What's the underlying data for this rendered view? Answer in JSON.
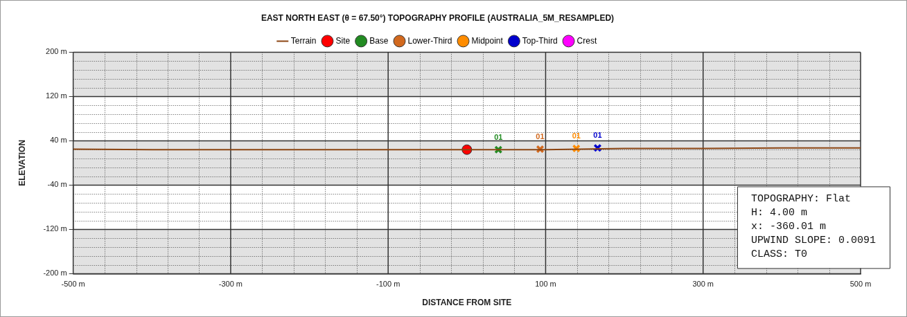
{
  "chart_data": {
    "type": "line",
    "title": "EAST NORTH EAST (θ = 67.50°) TOPOGRAPHY PROFILE (AUSTRALIA_5M_RESAMPLED)",
    "xlabel": "DISTANCE FROM SITE",
    "ylabel": "ELEVATION",
    "xlim": [
      -500,
      500
    ],
    "xticks": [
      {
        "value": -500,
        "label": "-500 m"
      },
      {
        "value": -300,
        "label": "-300 m"
      },
      {
        "value": -100,
        "label": "-100 m"
      },
      {
        "value": 100,
        "label": "100 m"
      },
      {
        "value": 300,
        "label": "300 m"
      },
      {
        "value": 500,
        "label": "500 m"
      }
    ],
    "ylim": [
      -200,
      200
    ],
    "yticks": [
      {
        "value": -200,
        "label": "-200 m"
      },
      {
        "value": -120,
        "label": "-120 m"
      },
      {
        "value": -40,
        "label": "-40 m"
      },
      {
        "value": 40,
        "label": "40 m"
      },
      {
        "value": 120,
        "label": "120 m"
      },
      {
        "value": 200,
        "label": "200 m"
      }
    ],
    "grid": true,
    "legend": "top",
    "line_style": "solid",
    "series": [
      {
        "name": "Terrain",
        "marker": "none",
        "color": "#8b4513",
        "x": [
          -500,
          -400,
          -300,
          -200,
          -100,
          0,
          100,
          200,
          300,
          400,
          500
        ],
        "values": [
          25,
          24,
          24,
          24,
          24,
          24,
          24,
          26,
          26,
          27,
          27
        ]
      },
      {
        "name": "Site",
        "type": "scatter",
        "marker": "circle",
        "color": "#ff0000",
        "x": [
          0
        ],
        "values": [
          24
        ]
      },
      {
        "name": "Base",
        "type": "scatter",
        "marker": "cross",
        "color": "#228b22",
        "x": [
          40
        ],
        "values": [
          24
        ]
      },
      {
        "name": "Lower-Third",
        "type": "scatter",
        "marker": "cross",
        "color": "#d2691e",
        "x": [
          93
        ],
        "values": [
          25
        ]
      },
      {
        "name": "Midpoint",
        "type": "scatter",
        "marker": "cross",
        "color": "#ff8c00",
        "x": [
          139
        ],
        "values": [
          26
        ]
      },
      {
        "name": "Top-Third",
        "type": "scatter",
        "marker": "cross",
        "color": "#0000cd",
        "x": [
          166
        ],
        "values": [
          27
        ]
      },
      {
        "name": "Crest",
        "type": "scatter",
        "marker": "circle",
        "color": "#ff00ff"
      }
    ],
    "annotations": [
      {
        "text": "01",
        "x": 40,
        "y": 24
      },
      {
        "text": "01",
        "x": 93,
        "y": 25
      },
      {
        "text": "01",
        "x": 139,
        "y": 26
      },
      {
        "text": "01",
        "x": 166,
        "y": 27
      },
      "TOPOGRAPHY: Flat\nH: 4.00 m\nx: -360.01 m\nUPWIND SLOPE: 0.0091\nCLASS: T0"
    ]
  }
}
